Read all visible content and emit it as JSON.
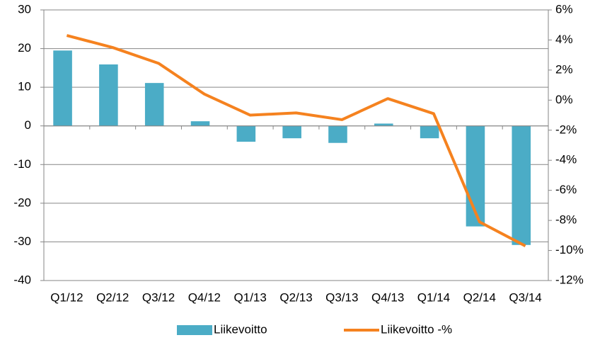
{
  "chart_data": {
    "type": "bar_line",
    "categories": [
      "Q1/12",
      "Q2/12",
      "Q3/12",
      "Q4/12",
      "Q1/13",
      "Q2/13",
      "Q3/13",
      "Q4/13",
      "Q1/14",
      "Q2/14",
      "Q3/14"
    ],
    "series": [
      {
        "name": "Liikevoitto",
        "type": "bar",
        "color": "#4bacc6",
        "values": [
          19.5,
          15.9,
          11.1,
          1.2,
          -4.1,
          -3.2,
          -4.4,
          0.6,
          -3.2,
          -26,
          -30.8
        ]
      },
      {
        "name": "Liikevoitto -%",
        "type": "line",
        "axis": "y2",
        "color": "#f5821f",
        "values": [
          4.3,
          3.5,
          2.45,
          0.4,
          -1.0,
          -0.85,
          -1.3,
          0.1,
          -0.9,
          -8.1,
          -9.7
        ]
      }
    ],
    "ylim": [
      -40,
      30
    ],
    "yticks": [
      -40,
      -30,
      -20,
      -10,
      0,
      10,
      20,
      30
    ],
    "y2lim": [
      -12,
      6
    ],
    "y2ticks": [
      {
        "value": -12,
        "label": "-12%"
      },
      {
        "value": -10,
        "label": "-10%"
      },
      {
        "value": -8,
        "label": "-8%"
      },
      {
        "value": -6,
        "label": "-6%"
      },
      {
        "value": -4,
        "label": "-4%"
      },
      {
        "value": -2,
        "label": "-2%"
      },
      {
        "value": 0,
        "label": "0%"
      },
      {
        "value": 2,
        "label": "2%"
      },
      {
        "value": 4,
        "label": "4%"
      },
      {
        "value": 6,
        "label": "6%"
      }
    ],
    "grid": true,
    "legend": "bottom"
  }
}
